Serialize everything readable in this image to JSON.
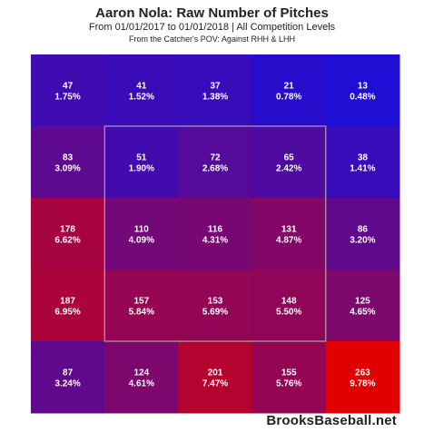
{
  "chart_data": {
    "type": "heatmap",
    "title": "Aaron Nola: Raw Number of Pitches",
    "subtitle": "From 01/01/2017 to 01/01/2018 | All Competition Levels",
    "note": "From the Catcher's POV:  Against RHH & LHH",
    "rows": 5,
    "cols": 5,
    "strike_zone": "inner 3x3",
    "color_scale": {
      "low": "#0f0fe6",
      "high": "#e00000"
    },
    "cells": [
      [
        {
          "count": "47",
          "pct": "1.75%"
        },
        {
          "count": "41",
          "pct": "1.52%"
        },
        {
          "count": "37",
          "pct": "1.38%"
        },
        {
          "count": "21",
          "pct": "0.78%"
        },
        {
          "count": "13",
          "pct": "0.48%"
        }
      ],
      [
        {
          "count": "83",
          "pct": "3.09%"
        },
        {
          "count": "51",
          "pct": "1.90%"
        },
        {
          "count": "72",
          "pct": "2.68%"
        },
        {
          "count": "65",
          "pct": "2.42%"
        },
        {
          "count": "38",
          "pct": "1.41%"
        }
      ],
      [
        {
          "count": "178",
          "pct": "6.62%"
        },
        {
          "count": "110",
          "pct": "4.09%"
        },
        {
          "count": "116",
          "pct": "4.31%"
        },
        {
          "count": "131",
          "pct": "4.87%"
        },
        {
          "count": "86",
          "pct": "3.20%"
        }
      ],
      [
        {
          "count": "187",
          "pct": "6.95%"
        },
        {
          "count": "157",
          "pct": "5.84%"
        },
        {
          "count": "153",
          "pct": "5.69%"
        },
        {
          "count": "148",
          "pct": "5.50%"
        },
        {
          "count": "125",
          "pct": "4.65%"
        }
      ],
      [
        {
          "count": "87",
          "pct": "3.24%"
        },
        {
          "count": "124",
          "pct": "4.61%"
        },
        {
          "count": "201",
          "pct": "7.47%"
        },
        {
          "count": "155",
          "pct": "5.76%"
        },
        {
          "count": "263",
          "pct": "9.78%"
        }
      ]
    ]
  },
  "footer": {
    "brand": "BrooksBaseball.net"
  }
}
